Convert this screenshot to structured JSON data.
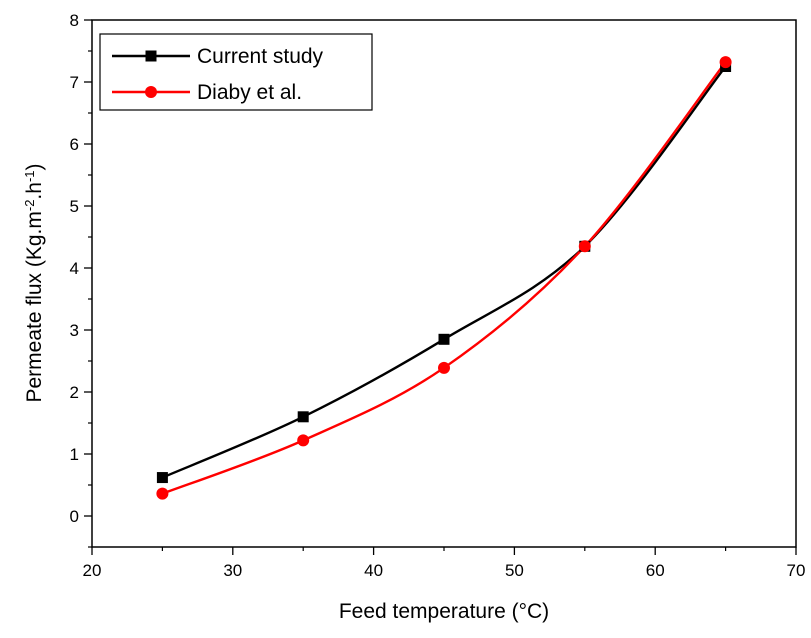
{
  "chart_data": {
    "type": "line",
    "xlabel": "Feed temperature (°C)",
    "ylabel": {
      "parts": [
        {
          "text": "Permeate flux (Kg.m",
          "sup": false
        },
        {
          "text": "-2",
          "sup": true
        },
        {
          "text": ".h",
          "sup": false
        },
        {
          "text": "-1",
          "sup": true
        },
        {
          "text": ")",
          "sup": false
        }
      ]
    },
    "xlim": [
      20,
      70
    ],
    "ylim": [
      -0.5,
      8
    ],
    "xticks": [
      20,
      30,
      40,
      50,
      60,
      70
    ],
    "yticks": [
      0,
      1,
      2,
      3,
      4,
      5,
      6,
      7,
      8
    ],
    "grid": false,
    "legend_position": "top-left",
    "series": [
      {
        "name": "Current study",
        "color": "#000000",
        "marker": "square",
        "x": [
          25,
          35,
          45,
          55,
          65
        ],
        "y": [
          0.62,
          1.6,
          2.85,
          4.35,
          7.25
        ]
      },
      {
        "name": "Diaby et al.",
        "color": "#ff0000",
        "marker": "circle",
        "x": [
          25,
          35,
          45,
          55,
          65
        ],
        "y": [
          0.36,
          1.22,
          2.39,
          4.35,
          7.32
        ]
      }
    ]
  }
}
